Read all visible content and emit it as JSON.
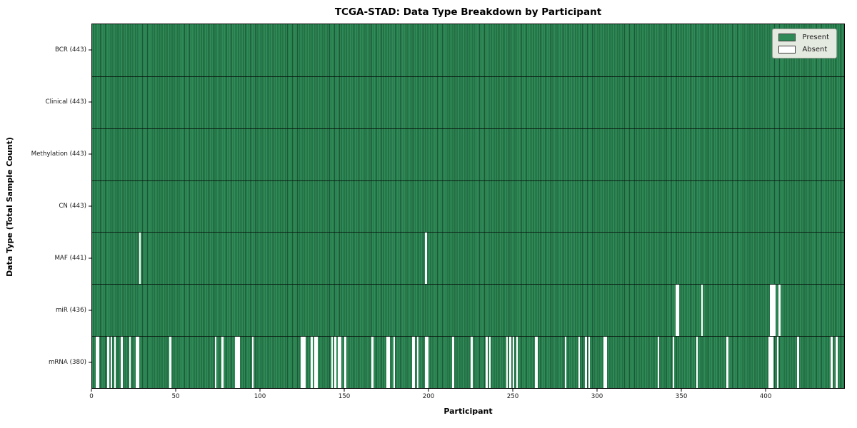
{
  "title": "TCGA-STAD: Data Type Breakdown by Participant",
  "colors": {
    "present": "#2e8b57",
    "present_edge": "#1c5736",
    "absent": "#ffffff",
    "legend_bg": "#e5eae0",
    "plot_border": "#000000"
  },
  "chart_data": {
    "type": "heatmap",
    "title": "TCGA-STAD: Data Type Breakdown by Participant",
    "xlabel": "Participant",
    "ylabel": "Data Type (Total Sample Count)",
    "x_ticks": [
      0,
      50,
      100,
      150,
      200,
      250,
      300,
      350,
      400
    ],
    "x_max": 447,
    "n_participants": 443,
    "grid": false,
    "legend_position": "upper right",
    "legend": [
      {
        "label": "Present",
        "color": "#2e8b57"
      },
      {
        "label": "Absent",
        "color": "#ffffff"
      }
    ],
    "rows": [
      {
        "label": "BCR (443)",
        "data_type": "BCR",
        "present_count": 443,
        "absent": []
      },
      {
        "label": "Clinical (443)",
        "data_type": "Clinical",
        "present_count": 443,
        "absent": []
      },
      {
        "label": "Methylation (443)",
        "data_type": "Methylation",
        "present_count": 443,
        "absent": []
      },
      {
        "label": "CN (443)",
        "data_type": "CN",
        "present_count": 443,
        "absent": []
      },
      {
        "label": "MAF (441)",
        "data_type": "MAF",
        "present_count": 441,
        "absent": [
          28,
          198
        ]
      },
      {
        "label": "miR (436)",
        "data_type": "miR",
        "present_count": 436,
        "absent": [
          347,
          348,
          362,
          403,
          404,
          405,
          408
        ]
      },
      {
        "label": "mRNA (380)",
        "data_type": "mRNA",
        "present_count": 380,
        "absent": [
          2,
          3,
          9,
          11,
          13,
          17,
          22,
          26,
          27,
          46,
          73,
          77,
          85,
          86,
          87,
          95,
          124,
          125,
          126,
          130,
          132,
          133,
          142,
          144,
          146,
          147,
          150,
          166,
          175,
          176,
          179,
          190,
          191,
          193,
          198,
          199,
          214,
          225,
          234,
          236,
          246,
          248,
          250,
          252,
          263,
          264,
          281,
          289,
          293,
          295,
          304,
          305,
          336,
          345,
          359,
          377,
          402,
          403,
          404,
          407,
          419,
          439,
          442
        ]
      }
    ]
  }
}
